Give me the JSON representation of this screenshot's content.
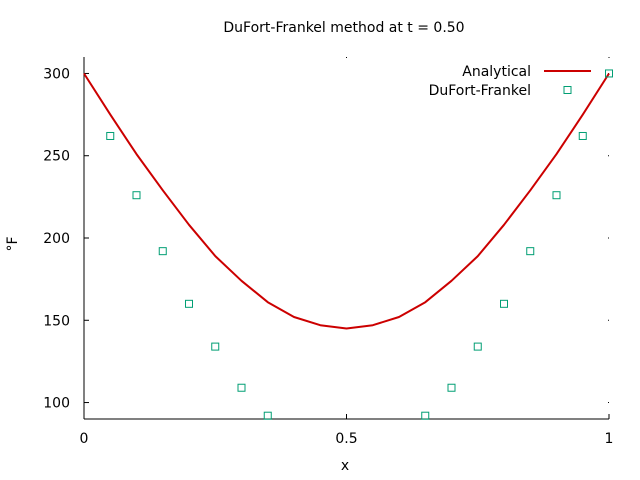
{
  "chart_data": {
    "type": "line",
    "title": "DuFort-Frankel method at t = 0.50",
    "xlabel": "x",
    "ylabel": "°F",
    "xlim": [
      0,
      1
    ],
    "ylim": [
      90,
      310
    ],
    "xticks": [
      {
        "value": 0,
        "label": "0"
      },
      {
        "value": 0.5,
        "label": "0.5"
      },
      {
        "value": 1,
        "label": "1"
      }
    ],
    "yticks": [
      {
        "value": 100,
        "label": "100"
      },
      {
        "value": 150,
        "label": "150"
      },
      {
        "value": 200,
        "label": "200"
      },
      {
        "value": 250,
        "label": "250"
      },
      {
        "value": 300,
        "label": "300"
      }
    ],
    "grid": false,
    "legend": "top-right",
    "series": [
      {
        "name": "Analytical",
        "style": "line",
        "color": "#cc0000",
        "x": [
          0,
          0.05,
          0.1,
          0.15,
          0.2,
          0.25,
          0.3,
          0.35,
          0.4,
          0.45,
          0.5,
          0.55,
          0.6,
          0.65,
          0.7,
          0.75,
          0.8,
          0.85,
          0.9,
          0.95,
          1
        ],
        "y": [
          300,
          275,
          251,
          229,
          208,
          189,
          174,
          161,
          152,
          147,
          145,
          147,
          152,
          161,
          174,
          189,
          208,
          229,
          251,
          275,
          300
        ]
      },
      {
        "name": "DuFort-Frankel",
        "style": "markers",
        "marker": "open-square",
        "color": "#009e73",
        "x": [
          0.05,
          0.1,
          0.15,
          0.2,
          0.25,
          0.3,
          0.35,
          0.65,
          0.7,
          0.75,
          0.8,
          0.85,
          0.9,
          0.95,
          1
        ],
        "y": [
          262,
          226,
          192,
          160,
          134,
          109,
          92,
          92,
          109,
          134,
          160,
          192,
          226,
          262,
          300
        ]
      }
    ]
  }
}
